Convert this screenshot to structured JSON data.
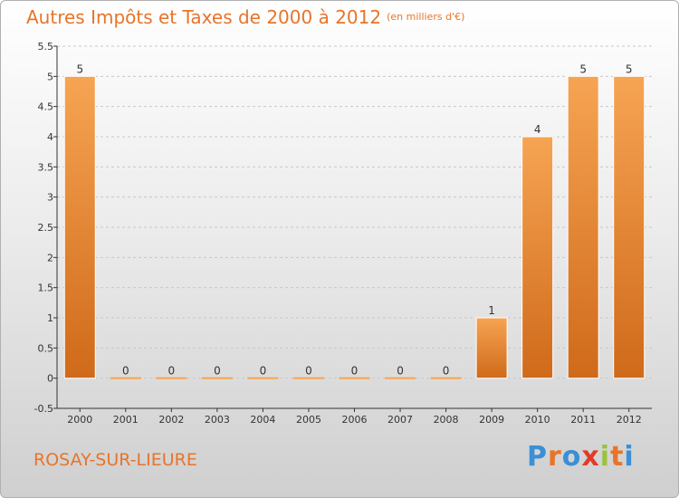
{
  "title": "Autres Impôts et Taxes de 2000 à 2012",
  "subtitle": "(en milliers d'€)",
  "place": "ROSAY-SUR-LIEURE",
  "logo": {
    "letters": [
      "P",
      "r",
      "o",
      "x",
      "i",
      "t",
      "i"
    ],
    "colors": [
      "#3a8fd6",
      "#e8742a",
      "#3a8fd6",
      "#e23a2a",
      "#9bc23c",
      "#e8742a",
      "#3a8fd6"
    ]
  },
  "colors": {
    "bar_light": "#f6a453",
    "bar_dark": "#cf6a1a",
    "accent": "#e8742a",
    "axis": "#333333",
    "grid": "#c8c8c8"
  },
  "chart_data": {
    "type": "bar",
    "categories": [
      "2000",
      "2001",
      "2002",
      "2003",
      "2004",
      "2005",
      "2006",
      "2007",
      "2008",
      "2009",
      "2010",
      "2011",
      "2012"
    ],
    "values": [
      5,
      0,
      0,
      0,
      0,
      0,
      0,
      0,
      0,
      1,
      4,
      5,
      5
    ],
    "data_labels": [
      "5",
      "0",
      "0",
      "0",
      "0",
      "0",
      "0",
      "0",
      "0",
      "1",
      "4",
      "5",
      "5"
    ],
    "ylim": [
      -0.5,
      5.5
    ],
    "yticks": [
      -0.5,
      0,
      0.5,
      1,
      1.5,
      2,
      2.5,
      3,
      3.5,
      4,
      4.5,
      5,
      5.5
    ],
    "ytick_labels": [
      "-0.5",
      "0",
      "0.5",
      "1",
      "1.5",
      "2",
      "2.5",
      "3",
      "3.5",
      "4",
      "4.5",
      "5",
      "5.5"
    ],
    "xlabel": "",
    "ylabel": "",
    "grid": "dashed horizontal"
  }
}
